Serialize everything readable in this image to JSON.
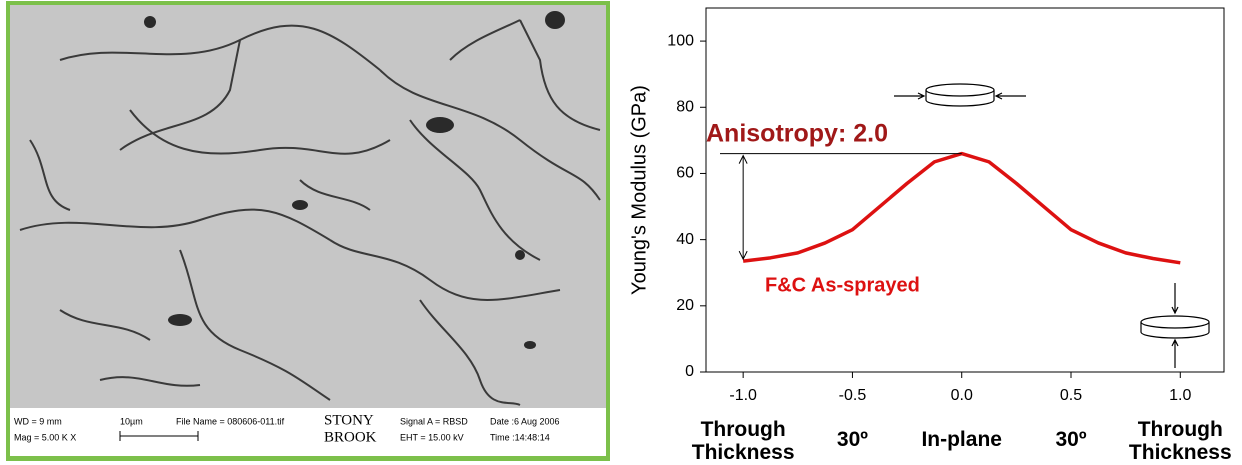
{
  "micrograph": {
    "wd": "WD =  9 mm",
    "mag": "Mag =  5.00 K X",
    "scale": "10µm",
    "file": "File Name = 080606-011.tif",
    "logo_top": "STONY",
    "logo_bottom": "BROOK",
    "signal": "Signal A = RBSD",
    "eht": "EHT = 15.00 kV",
    "date": "Date :6 Aug 2006",
    "time": "Time :14:48:14"
  },
  "chart_data": {
    "type": "line",
    "y_label": "Young's Modulus (GPa)",
    "annotations": [
      "Anisotropy: 2.0",
      "F&C As-sprayed"
    ],
    "x_sublabels": [
      "Through Thickness",
      "30º",
      "In-plane",
      "30º",
      "Through Thickness"
    ],
    "x": [
      -1,
      -0.875,
      -0.75,
      -0.625,
      -0.5,
      -0.375,
      -0.25,
      -0.125,
      0,
      0.125,
      0.25,
      0.375,
      0.5,
      0.625,
      0.75,
      0.875,
      1
    ],
    "series": [
      {
        "name": "F&C As-sprayed",
        "color": "#dd1111",
        "values": [
          33.5,
          34.5,
          36,
          39,
          43,
          50,
          57,
          63.5,
          66,
          63.5,
          57,
          50,
          43,
          39,
          36,
          34.3,
          33
        ]
      }
    ],
    "xlim": [
      -1.17,
      1.2
    ],
    "xticks": [
      {
        "value": -1,
        "label": "-1.0"
      },
      -0.5,
      {
        "value": 0,
        "label": "0.0"
      },
      0.5,
      {
        "value": 1,
        "label": "1.0"
      }
    ],
    "ylim": [
      0,
      110
    ],
    "yticks": [
      0,
      20,
      40,
      60,
      80,
      100
    ],
    "grid": false
  }
}
